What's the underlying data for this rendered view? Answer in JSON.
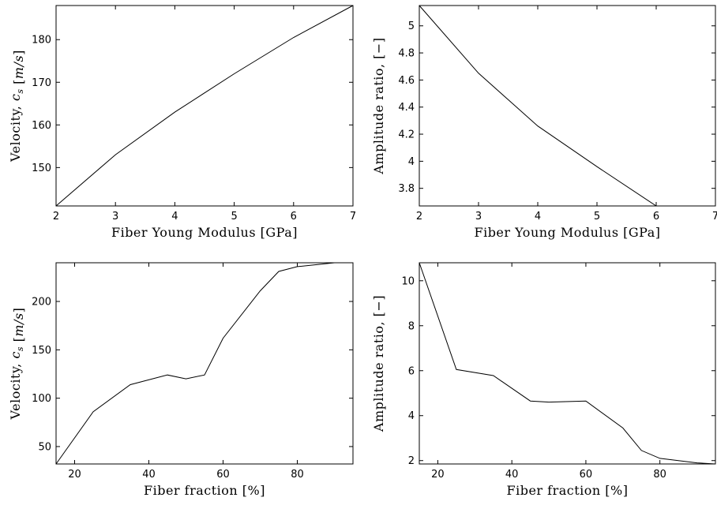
{
  "chart_data": [
    {
      "type": "line",
      "xlabel": "Fiber Young Modulus [GPa]",
      "ylabel": "Velocity, c_s [m/s]",
      "xlim": [
        2,
        7
      ],
      "ylim": [
        141,
        188
      ],
      "xticks": [
        2,
        3,
        4,
        5,
        6,
        7
      ],
      "yticks": [
        150,
        160,
        170,
        180
      ],
      "grid": false,
      "series": [
        {
          "x": [
            2,
            3,
            4,
            5,
            6,
            7
          ],
          "y": [
            141,
            153,
            163,
            172,
            180.5,
            188
          ]
        }
      ]
    },
    {
      "type": "line",
      "xlabel": "Fiber Young Modulus [GPa]",
      "ylabel": "Amplitude ratio, [−]",
      "xlim": [
        2,
        7
      ],
      "ylim": [
        3.67,
        5.15
      ],
      "xticks": [
        2,
        3,
        4,
        5,
        6,
        7
      ],
      "yticks": [
        3.8,
        4,
        4.2,
        4.4,
        4.6,
        4.8,
        5
      ],
      "ytick_labels": [
        "3.8",
        "4",
        "4.2",
        "4.4",
        "4.6",
        "4.8",
        "5"
      ],
      "grid": false,
      "series": [
        {
          "x": [
            2,
            3,
            4,
            5,
            6
          ],
          "y": [
            5.15,
            4.65,
            4.26,
            3.96,
            3.67
          ]
        }
      ]
    },
    {
      "type": "line",
      "xlabel": "Fiber fraction [%]",
      "ylabel": "Velocity, c_s [m/s]",
      "xlim": [
        15,
        95
      ],
      "ylim": [
        32,
        240
      ],
      "xticks": [
        20,
        40,
        60,
        80
      ],
      "yticks": [
        50,
        100,
        150,
        200
      ],
      "grid": false,
      "series": [
        {
          "x": [
            15,
            25,
            35,
            45,
            50,
            55,
            60,
            70,
            75,
            80,
            85,
            90,
            95
          ],
          "y": [
            32,
            86,
            114,
            124,
            120,
            124,
            162,
            211,
            231,
            236,
            238,
            240,
            240
          ]
        }
      ]
    },
    {
      "type": "line",
      "xlabel": "Fiber fraction [%]",
      "ylabel": "Amplitude ratio, [−]",
      "xlim": [
        15,
        95
      ],
      "ylim": [
        1.85,
        10.8
      ],
      "xticks": [
        20,
        40,
        60,
        80
      ],
      "yticks": [
        2,
        4,
        6,
        8,
        10
      ],
      "grid": false,
      "series": [
        {
          "x": [
            15,
            25,
            35,
            45,
            50,
            60,
            70,
            75,
            80,
            90,
            95
          ],
          "y": [
            10.8,
            6.05,
            5.78,
            4.65,
            4.6,
            4.65,
            3.45,
            2.45,
            2.1,
            1.9,
            1.85
          ]
        }
      ]
    }
  ]
}
